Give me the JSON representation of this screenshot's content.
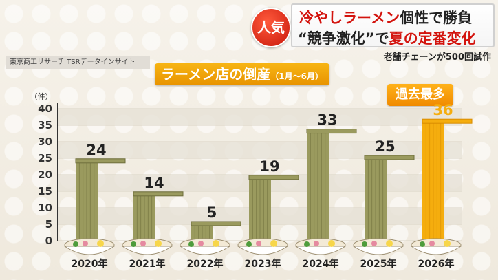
{
  "banner": {
    "badge": "人気",
    "line1_red": "冷やしラーメン",
    "line1_black": "個性で勝負",
    "line2_a": "“競争激化”で",
    "line2_red": "夏の定番変化"
  },
  "tagline": "老舗チェーンが500回試作",
  "source": "東京商工リサーチ TSRデータインサイト",
  "chart_data": {
    "type": "bar",
    "title": "ラーメン店の倒産",
    "subtitle": "（1月〜6月）",
    "ylabel": "（件）",
    "categories": [
      "2020年",
      "2021年",
      "2022年",
      "2023年",
      "2024年",
      "2025年",
      "2026年"
    ],
    "values": [
      24,
      14,
      5,
      19,
      33,
      25,
      36
    ],
    "ylim": [
      0,
      40
    ],
    "yticks": [
      0,
      5,
      10,
      15,
      20,
      25,
      30,
      35,
      40
    ],
    "highlight_index": 6,
    "annotation": "過去最多",
    "colors": {
      "bar": "#9a9a5e",
      "bar_dark": "#6f6f3c",
      "highlight": "#f5ad0e",
      "highlight_dark": "#d98c00",
      "grid": "#d9d3c5"
    }
  }
}
